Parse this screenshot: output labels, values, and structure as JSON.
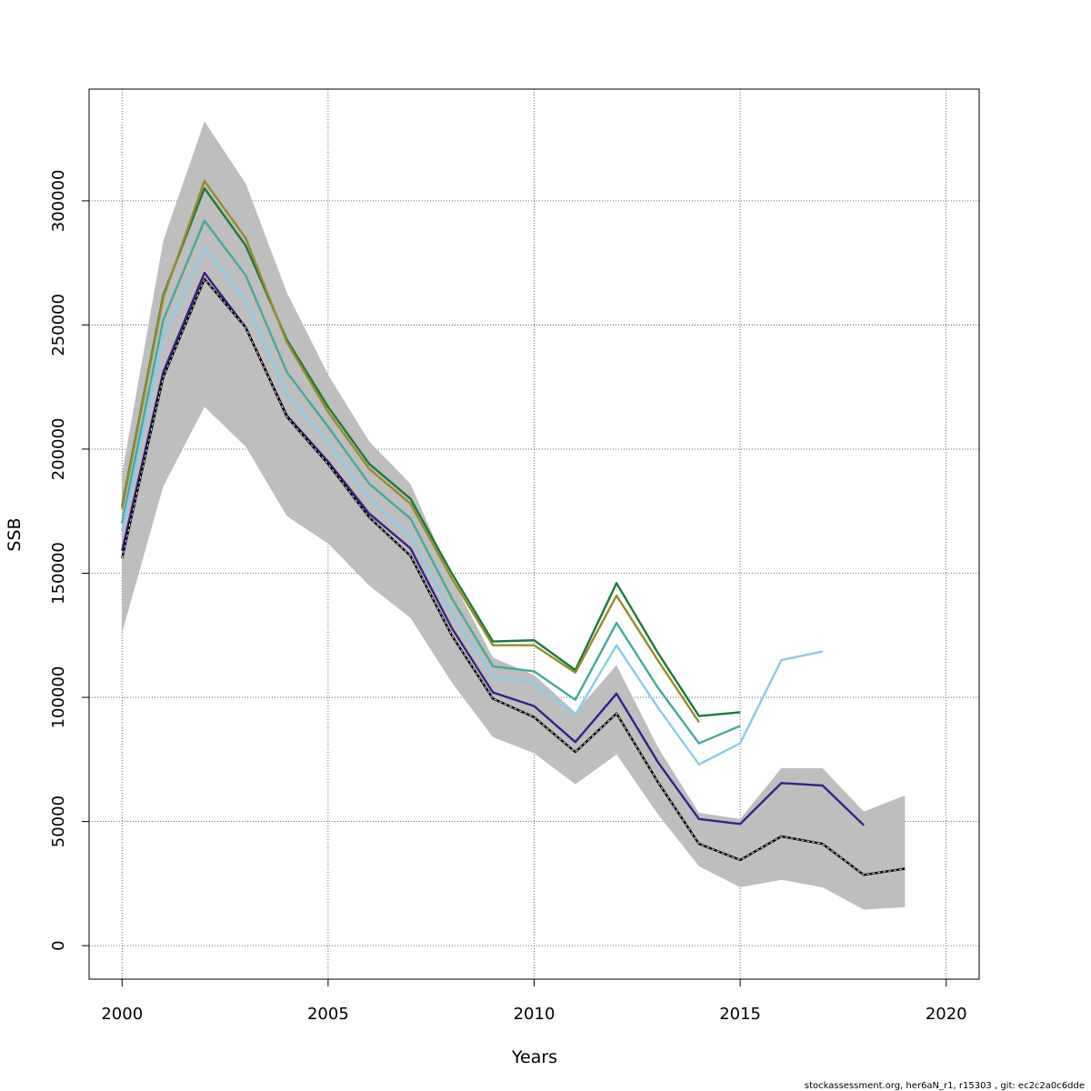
{
  "chart_data": {
    "type": "line",
    "xlabel": "Years",
    "ylabel": "SSB",
    "xlim": [
      1999.2,
      2020.8
    ],
    "ylim": [
      -13500,
      345000
    ],
    "x_ticks": [
      2000,
      2005,
      2010,
      2015,
      2020
    ],
    "y_ticks": [
      0,
      50000,
      100000,
      150000,
      200000,
      250000,
      300000
    ],
    "x_tick_labels": [
      "2000",
      "2005",
      "2010",
      "2015",
      "2020"
    ],
    "y_tick_labels": [
      "0",
      "50000",
      "100000",
      "150000",
      "200000",
      "250000",
      "300000"
    ],
    "grid": true,
    "footer": "stockassessment.org, her6aN_r1, r15303 , git: ec2c2a0c6dde",
    "band": {
      "color": "#bebebe",
      "x": [
        2000,
        2001,
        2002,
        2003,
        2004,
        2005,
        2006,
        2007,
        2008,
        2009,
        2010,
        2011,
        2012,
        2013,
        2014,
        2015,
        2016,
        2017,
        2018,
        2019
      ],
      "lower": [
        126000,
        185000,
        217000,
        201000,
        173000,
        162000,
        145000,
        132000,
        106000,
        84000,
        77500,
        65000,
        77000,
        53000,
        32000,
        23500,
        26500,
        23500,
        14500,
        15500
      ],
      "upper": [
        190000,
        284000,
        332000,
        307000,
        263000,
        230000,
        203000,
        186000,
        148000,
        116000,
        109000,
        94000,
        113000,
        80000,
        53500,
        51000,
        71500,
        71500,
        54000,
        60500
      ]
    },
    "series": [
      {
        "color": "#1a7a3a",
        "x": [
          2000,
          2001,
          2002,
          2003,
          2004,
          2005,
          2006,
          2007,
          2008,
          2009,
          2010,
          2011,
          2012,
          2013,
          2014,
          2015
        ],
        "values": [
          177000,
          262000,
          305000,
          282000,
          244000,
          217000,
          194000,
          180000,
          150000,
          122500,
          123000,
          111000,
          146000,
          118000,
          92500,
          94000
        ]
      },
      {
        "color": "#9a8a2a",
        "x": [
          2000,
          2001,
          2002,
          2003,
          2004,
          2005,
          2006,
          2007,
          2008,
          2009,
          2010,
          2011,
          2012,
          2013,
          2014
        ],
        "values": [
          176000,
          261000,
          308000,
          285000,
          243000,
          215000,
          192000,
          178000,
          148000,
          121000,
          121000,
          110000,
          141000,
          115000,
          90000
        ]
      },
      {
        "color": "#44aa99",
        "x": [
          2000,
          2001,
          2002,
          2003,
          2004,
          2005,
          2006,
          2007,
          2008,
          2009,
          2010,
          2011,
          2012,
          2013,
          2014,
          2015
        ],
        "values": [
          170000,
          252000,
          292000,
          270000,
          231000,
          209000,
          186000,
          172000,
          140000,
          112500,
          110500,
          99000,
          130000,
          104000,
          81500,
          88500
        ]
      },
      {
        "color": "#88ccee",
        "x": [
          2000,
          2001,
          2002,
          2003,
          2004,
          2005,
          2006,
          2007,
          2008,
          2009,
          2010,
          2011,
          2012,
          2013,
          2014,
          2015,
          2016,
          2017
        ],
        "values": [
          167000,
          245000,
          281000,
          260000,
          222000,
          203000,
          180000,
          165000,
          134000,
          108000,
          106000,
          93000,
          121000,
          96000,
          73000,
          81500,
          115000,
          118500
        ]
      },
      {
        "color": "#332288",
        "x": [
          2000,
          2001,
          2002,
          2003,
          2004,
          2005,
          2006,
          2007,
          2008,
          2009,
          2010,
          2011,
          2012,
          2013,
          2014,
          2015,
          2016,
          2017,
          2018
        ],
        "values": [
          159000,
          231000,
          271000,
          249000,
          213500,
          195000,
          174000,
          160000,
          128000,
          102000,
          96500,
          82000,
          101500,
          74000,
          51000,
          49000,
          65500,
          64500,
          48500
        ]
      },
      {
        "color": "#000000",
        "dashed": true,
        "x": [
          2000,
          2001,
          2002,
          2003,
          2004,
          2005,
          2006,
          2007,
          2008,
          2009,
          2010,
          2011,
          2012,
          2013,
          2014,
          2015,
          2016,
          2017,
          2018,
          2019
        ],
        "values": [
          156000,
          229000,
          268500,
          249000,
          213000,
          194000,
          172500,
          157000,
          125000,
          99500,
          92000,
          78000,
          93500,
          66000,
          41000,
          34500,
          44000,
          41000,
          28500,
          31000
        ]
      }
    ]
  }
}
